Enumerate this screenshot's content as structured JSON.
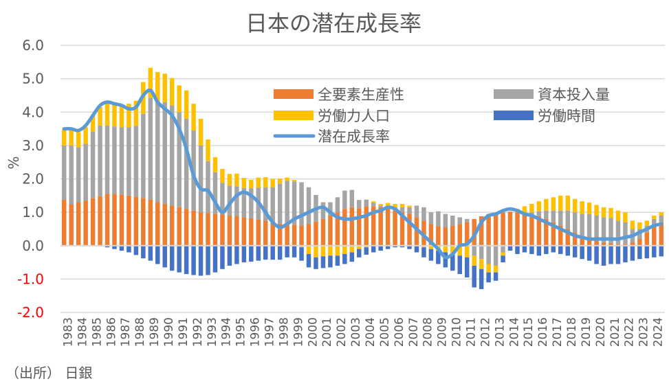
{
  "chart_data": {
    "type": "bar",
    "stacked": true,
    "title": "日本の潜在成長率",
    "xlabel": "",
    "ylabel": "%",
    "ylim": [
      -2.0,
      6.0
    ],
    "yticks": [
      -2.0,
      -1.0,
      0.0,
      1.0,
      2.0,
      3.0,
      4.0,
      5.0,
      6.0
    ],
    "ytick_labels": [
      "-2.0",
      "-1.0",
      "0.0",
      "1.0",
      "2.0",
      "3.0",
      "4.0",
      "5.0",
      "6.0"
    ],
    "grid": true,
    "legend_position": "top-right",
    "xtick_labels": [
      "1983",
      "1984",
      "1985",
      "1986",
      "1987",
      "1988",
      "1989",
      "1990",
      "1991",
      "1992",
      "1993",
      "1994",
      "1995",
      "1996",
      "1997",
      "1998",
      "1999",
      "2000",
      "2001",
      "2002",
      "2003",
      "2004",
      "2005",
      "2006",
      "2007",
      "2008",
      "2009",
      "2010",
      "2011",
      "2012",
      "2013",
      "2014",
      "2015",
      "2016",
      "2017",
      "2018",
      "2019",
      "2020",
      "2021",
      "2022",
      "2023",
      "2024"
    ],
    "periods_per_year": 2,
    "series": [
      {
        "name": "全要素生産性",
        "kind": "bar",
        "color": "#ED7D31",
        "values": [
          1.38,
          1.24,
          1.3,
          1.35,
          1.42,
          1.48,
          1.55,
          1.55,
          1.53,
          1.5,
          1.47,
          1.43,
          1.38,
          1.3,
          1.25,
          1.2,
          1.15,
          1.1,
          1.05,
          1.0,
          0.98,
          0.95,
          0.93,
          0.9,
          0.88,
          0.85,
          0.82,
          0.78,
          0.75,
          0.7,
          0.66,
          0.64,
          0.62,
          0.6,
          0.65,
          0.72,
          0.8,
          0.9,
          1.0,
          1.1,
          1.15,
          1.12,
          1.18,
          1.18,
          1.15,
          1.1,
          1.05,
          1.0,
          0.95,
          0.85,
          0.75,
          0.65,
          0.58,
          0.55,
          0.6,
          0.65,
          0.7,
          0.8,
          0.88,
          0.95,
          0.98,
          1.0,
          1.02,
          1.0,
          0.98,
          0.9,
          0.88,
          0.8,
          0.7,
          0.6,
          0.5,
          0.4,
          0.3,
          0.22,
          0.15,
          0.1,
          0.08,
          0.05,
          0.05,
          0.1,
          0.2,
          0.4,
          0.6,
          0.7
        ]
      },
      {
        "name": "資本投入量",
        "kind": "bar",
        "color": "#A5A5A5",
        "values": [
          1.62,
          1.76,
          1.65,
          1.7,
          2.0,
          2.12,
          2.05,
          2.02,
          2.02,
          2.05,
          2.12,
          2.52,
          3.05,
          3.0,
          3.05,
          3.0,
          2.85,
          2.7,
          2.4,
          2.0,
          1.55,
          1.25,
          0.95,
          0.9,
          0.9,
          0.88,
          0.9,
          0.96,
          1.0,
          1.05,
          1.2,
          1.3,
          1.3,
          1.3,
          1.1,
          0.8,
          0.5,
          0.4,
          0.45,
          0.55,
          0.52,
          0.25,
          0.2,
          0.1,
          0.05,
          0.08,
          0.1,
          0.15,
          0.2,
          0.35,
          0.4,
          0.35,
          0.45,
          0.4,
          0.3,
          0.2,
          0.1,
          -0.3,
          -0.4,
          -0.55,
          -0.6,
          -0.2,
          0.0,
          0.0,
          0.0,
          0.1,
          0.15,
          0.25,
          0.35,
          0.45,
          0.55,
          0.6,
          0.65,
          0.72,
          0.75,
          0.75,
          0.75,
          0.7,
          0.65,
          0.4,
          0.3,
          0.2,
          0.2,
          0.2
        ]
      },
      {
        "name": "労働力人口",
        "kind": "bar",
        "color": "#FFC000",
        "values": [
          0.5,
          0.45,
          0.45,
          0.5,
          0.5,
          0.55,
          0.67,
          0.7,
          0.68,
          0.7,
          0.75,
          0.95,
          0.9,
          0.9,
          0.85,
          0.82,
          0.8,
          0.85,
          0.8,
          0.8,
          0.65,
          0.45,
          0.42,
          0.35,
          0.38,
          0.3,
          0.25,
          0.3,
          0.3,
          0.25,
          0.15,
          0.1,
          0.05,
          -0.05,
          -0.25,
          -0.35,
          -0.32,
          -0.3,
          -0.3,
          -0.25,
          -0.2,
          -0.1,
          -0.05,
          0.05,
          0.05,
          0.1,
          0.1,
          0.1,
          0.05,
          0.0,
          -0.05,
          -0.1,
          -0.15,
          -0.2,
          -0.25,
          -0.3,
          -0.35,
          -0.3,
          -0.3,
          -0.25,
          -0.2,
          -0.1,
          0.0,
          0.1,
          0.2,
          0.25,
          0.3,
          0.35,
          0.4,
          0.45,
          0.45,
          0.4,
          0.38,
          0.35,
          0.32,
          0.3,
          0.3,
          0.3,
          0.3,
          0.25,
          0.2,
          0.15,
          0.1,
          0.1
        ]
      },
      {
        "name": "労働時間",
        "kind": "bar",
        "color": "#4472C4",
        "values": [
          0.0,
          0.0,
          0.0,
          0.0,
          0.0,
          -0.02,
          -0.05,
          -0.1,
          -0.15,
          -0.2,
          -0.28,
          -0.38,
          -0.45,
          -0.55,
          -0.65,
          -0.75,
          -0.8,
          -0.85,
          -0.88,
          -0.9,
          -0.88,
          -0.8,
          -0.7,
          -0.6,
          -0.55,
          -0.5,
          -0.48,
          -0.45,
          -0.42,
          -0.42,
          -0.42,
          -0.35,
          -0.35,
          -0.4,
          -0.4,
          -0.35,
          -0.35,
          -0.35,
          -0.3,
          -0.3,
          -0.28,
          -0.25,
          -0.22,
          -0.2,
          -0.15,
          -0.1,
          -0.05,
          -0.05,
          -0.1,
          -0.2,
          -0.3,
          -0.35,
          -0.4,
          -0.45,
          -0.5,
          -0.55,
          -0.6,
          -0.65,
          -0.6,
          -0.3,
          -0.25,
          -0.2,
          -0.15,
          -0.25,
          -0.2,
          -0.25,
          -0.3,
          -0.25,
          -0.2,
          -0.25,
          -0.3,
          -0.35,
          -0.4,
          -0.45,
          -0.55,
          -0.6,
          -0.55,
          -0.55,
          -0.5,
          -0.45,
          -0.4,
          -0.38,
          -0.35,
          -0.32
        ]
      },
      {
        "name": "潜在成長率",
        "kind": "line",
        "color": "#5B9BD5",
        "values": [
          3.5,
          3.5,
          3.45,
          3.6,
          3.9,
          4.2,
          4.3,
          4.25,
          4.2,
          4.1,
          4.15,
          4.5,
          4.65,
          4.3,
          4.1,
          3.9,
          3.5,
          2.9,
          2.1,
          1.7,
          1.65,
          1.3,
          1.0,
          1.25,
          1.5,
          1.6,
          1.5,
          1.3,
          1.0,
          0.7,
          0.55,
          0.65,
          0.8,
          0.9,
          1.0,
          1.1,
          1.15,
          1.0,
          0.85,
          0.8,
          0.8,
          0.85,
          0.9,
          1.0,
          1.05,
          1.15,
          1.1,
          0.9,
          0.7,
          0.5,
          0.3,
          0.1,
          -0.1,
          -0.35,
          -0.25,
          0.0,
          0.05,
          0.3,
          0.7,
          0.9,
          0.95,
          1.05,
          1.1,
          1.05,
          0.95,
          0.9,
          0.8,
          0.7,
          0.6,
          0.5,
          0.4,
          0.3,
          0.25,
          0.2,
          0.2,
          0.2,
          0.2,
          0.2,
          0.25,
          0.3,
          0.4,
          0.5,
          0.6,
          0.65
        ]
      }
    ],
    "legend": [
      {
        "label": "全要素生産性",
        "color": "#ED7D31",
        "kind": "bar"
      },
      {
        "label": "資本投入量",
        "color": "#A5A5A5",
        "kind": "bar"
      },
      {
        "label": "労働力人口",
        "color": "#FFC000",
        "kind": "bar"
      },
      {
        "label": "労働時間",
        "color": "#4472C4",
        "kind": "bar"
      },
      {
        "label": "潜在成長率",
        "color": "#5B9BD5",
        "kind": "line"
      }
    ]
  },
  "source": "（出所） 日銀",
  "colors": {
    "negative_tick": "#FF0000",
    "tick": "#595959",
    "grid": "#D9D9D9"
  }
}
